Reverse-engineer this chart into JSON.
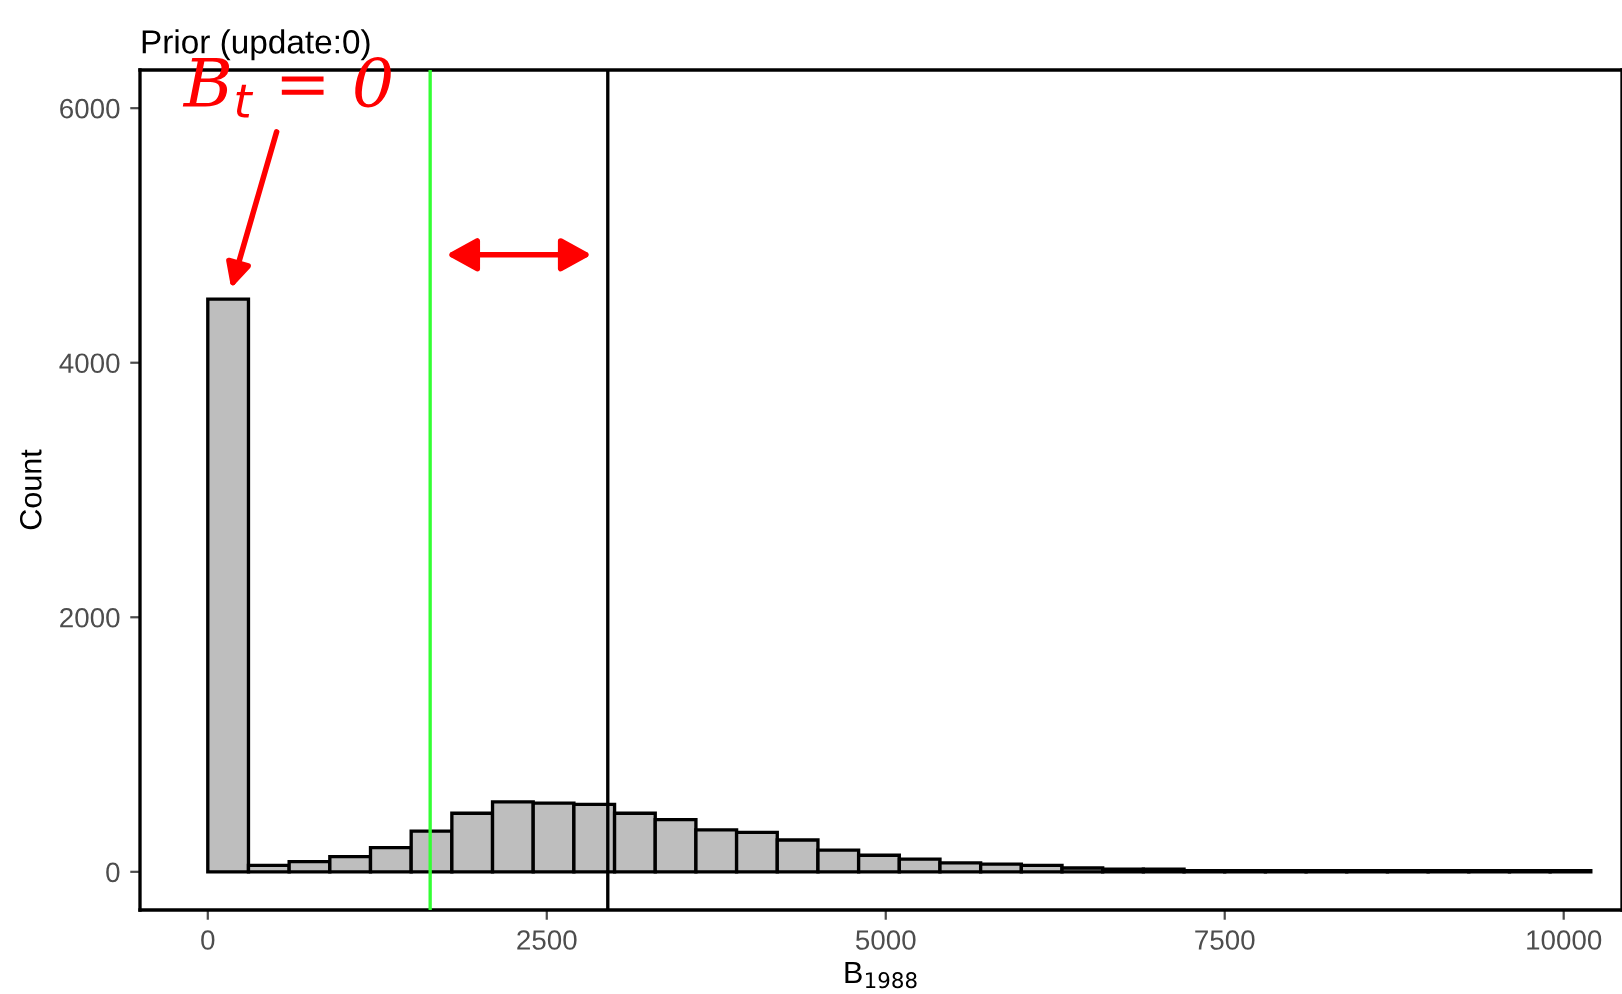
{
  "chart_data": {
    "type": "histogram",
    "title": "Prior (update:0)",
    "xlabel": "B$_{1988}$",
    "ylabel": "Count",
    "bins": [
      0,
      300,
      600,
      900,
      1200,
      1500,
      1800,
      2100,
      2400,
      2700,
      3000,
      3300,
      3600,
      3900,
      4200,
      4500,
      4800,
      5100,
      5400,
      5700,
      6000,
      6300,
      6600,
      6900,
      7200,
      7500,
      7800,
      8100,
      8400,
      8700,
      9000,
      9300,
      9600,
      9900,
      10200
    ],
    "values": [
      4500,
      50,
      80,
      120,
      190,
      320,
      460,
      550,
      540,
      530,
      460,
      410,
      330,
      310,
      250,
      170,
      130,
      100,
      70,
      60,
      50,
      30,
      20,
      20,
      10,
      10,
      10,
      10,
      10,
      10,
      10,
      10,
      10,
      10
    ],
    "color": "#bebebe",
    "xlim": [
      -500,
      10430
    ],
    "xticks": [
      0,
      2500,
      5000,
      7500,
      10000
    ],
    "ylim": [
      -300,
      6300
    ],
    "yticks": [
      0,
      2000,
      4000,
      6000
    ],
    "ref_lines": [
      {
        "axis": "x",
        "value": 1640,
        "color": "#33ff33"
      },
      {
        "axis": "x",
        "value": 2950,
        "color": "#000000"
      }
    ],
    "annotations": [
      {
        "text": "B$_{t}$ = 0",
        "x": 150,
        "y": 4500
      }
    ],
    "grid": false,
    "legend": false
  }
}
